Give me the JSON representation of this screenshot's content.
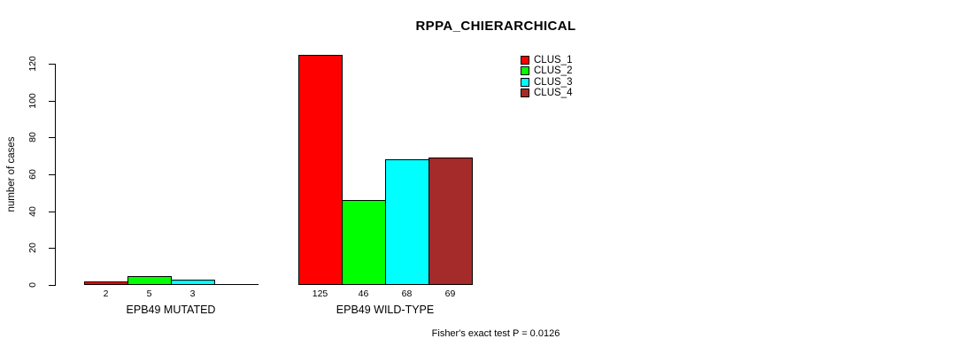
{
  "chart_data": {
    "type": "bar",
    "title": "RPPA_CHIERARCHICAL",
    "ylabel": "number of cases",
    "xlabel": "",
    "ylim": [
      0,
      120
    ],
    "yticks": [
      0,
      20,
      40,
      60,
      80,
      100,
      120
    ],
    "grid": false,
    "categories": [
      "EPB49 MUTATED",
      "EPB49 WILD-TYPE"
    ],
    "series": [
      {
        "name": "CLUS_1",
        "color": "#FF0000",
        "values": [
          2,
          125
        ]
      },
      {
        "name": "CLUS_2",
        "color": "#00FF00",
        "values": [
          5,
          46
        ]
      },
      {
        "name": "CLUS_3",
        "color": "#00FFFF",
        "values": [
          3,
          68
        ]
      },
      {
        "name": "CLUS_4",
        "color": "#A52A2A",
        "values": [
          0,
          69
        ]
      }
    ],
    "bar_value_labels": [
      [
        "2",
        "5",
        "3",
        ""
      ],
      [
        "125",
        "46",
        "68",
        "69"
      ]
    ],
    "legend": {
      "position": "top-right",
      "entries": [
        {
          "label": "CLUS_1",
          "color": "#FF0000"
        },
        {
          "label": "CLUS_2",
          "color": "#00FF00"
        },
        {
          "label": "CLUS_3",
          "color": "#00FFFF"
        },
        {
          "label": "CLUS_4",
          "color": "#A52A2A"
        }
      ]
    },
    "annotation": "Fisher's exact test P = 0.0126"
  }
}
